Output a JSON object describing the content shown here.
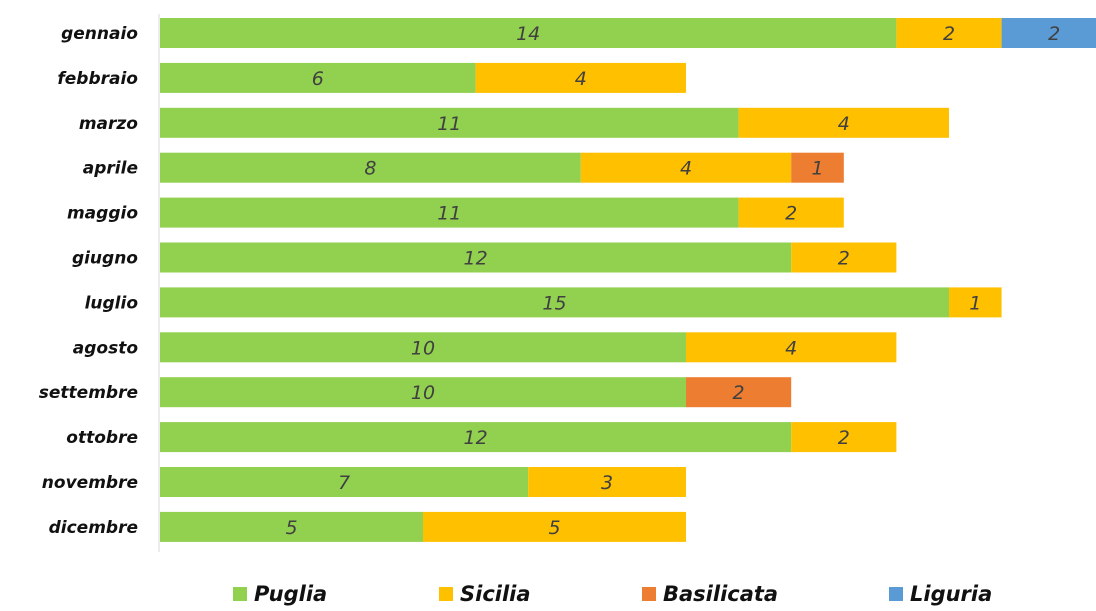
{
  "chart_data": {
    "type": "bar",
    "orientation": "horizontal",
    "stacked": true,
    "categories": [
      "gennaio",
      "febbraio",
      "marzo",
      "aprile",
      "maggio",
      "giugno",
      "luglio",
      "agosto",
      "settembre",
      "ottobre",
      "novembre",
      "dicembre"
    ],
    "series": [
      {
        "name": "Puglia",
        "color": "#92d050",
        "values": [
          14,
          6,
          11,
          8,
          11,
          12,
          15,
          10,
          10,
          12,
          7,
          5
        ]
      },
      {
        "name": "Sicilia",
        "color": "#ffc000",
        "values": [
          2,
          4,
          4,
          4,
          2,
          2,
          1,
          4,
          0,
          2,
          3,
          5
        ]
      },
      {
        "name": "Basilicata",
        "color": "#ed7d31",
        "values": [
          0,
          0,
          0,
          1,
          0,
          0,
          0,
          0,
          2,
          0,
          0,
          0
        ]
      },
      {
        "name": "Liguria",
        "color": "#5b9bd5",
        "values": [
          2,
          0,
          0,
          0,
          0,
          0,
          0,
          0,
          0,
          0,
          0,
          0
        ]
      }
    ],
    "title": "",
    "xlabel": "",
    "ylabel": "",
    "xlim": [
      0,
      18
    ],
    "grid": false,
    "legend": "bottom",
    "data_labels": true
  }
}
